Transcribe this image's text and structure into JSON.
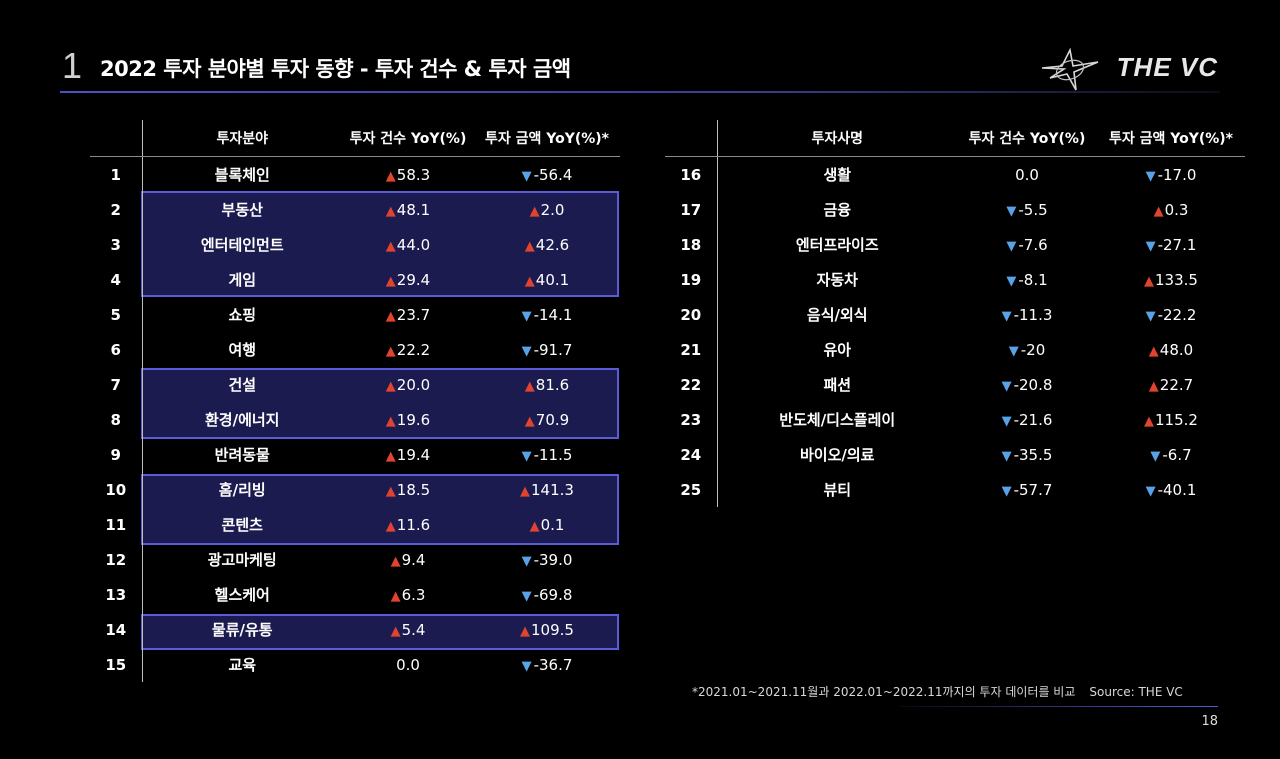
{
  "header": {
    "section_number": "1",
    "title": "2022 투자 분야별 투자 동향 - 투자 건수 & 투자 금액",
    "logo_text": "THE VC"
  },
  "left_table": {
    "headers": [
      "",
      "투자분야",
      "투자 건수 YoY(%)",
      "투자 금액 YoY(%)*"
    ],
    "rows": [
      {
        "rank": "1",
        "category": "블록체인",
        "count": "58.3",
        "count_dir": "up",
        "amount": "-56.4",
        "amount_dir": "down"
      },
      {
        "rank": "2",
        "category": "부동산",
        "count": "48.1",
        "count_dir": "up",
        "amount": "2.0",
        "amount_dir": "up"
      },
      {
        "rank": "3",
        "category": "엔터테인먼트",
        "count": "44.0",
        "count_dir": "up",
        "amount": "42.6",
        "amount_dir": "up"
      },
      {
        "rank": "4",
        "category": "게임",
        "count": "29.4",
        "count_dir": "up",
        "amount": "40.1",
        "amount_dir": "up"
      },
      {
        "rank": "5",
        "category": "쇼핑",
        "count": "23.7",
        "count_dir": "up",
        "amount": "-14.1",
        "amount_dir": "down"
      },
      {
        "rank": "6",
        "category": "여행",
        "count": "22.2",
        "count_dir": "up",
        "amount": "-91.7",
        "amount_dir": "down"
      },
      {
        "rank": "7",
        "category": "건설",
        "count": "20.0",
        "count_dir": "up",
        "amount": "81.6",
        "amount_dir": "up"
      },
      {
        "rank": "8",
        "category": "환경/에너지",
        "count": "19.6",
        "count_dir": "up",
        "amount": "70.9",
        "amount_dir": "up"
      },
      {
        "rank": "9",
        "category": "반려동물",
        "count": "19.4",
        "count_dir": "up",
        "amount": "-11.5",
        "amount_dir": "down"
      },
      {
        "rank": "10",
        "category": "홈/리빙",
        "count": "18.5",
        "count_dir": "up",
        "amount": "141.3",
        "amount_dir": "up"
      },
      {
        "rank": "11",
        "category": "콘텐츠",
        "count": "11.6",
        "count_dir": "up",
        "amount": "0.1",
        "amount_dir": "up"
      },
      {
        "rank": "12",
        "category": "광고마케팅",
        "count": "9.4",
        "count_dir": "up",
        "amount": "-39.0",
        "amount_dir": "down"
      },
      {
        "rank": "13",
        "category": "헬스케어",
        "count": "6.3",
        "count_dir": "up",
        "amount": "-69.8",
        "amount_dir": "down"
      },
      {
        "rank": "14",
        "category": "물류/유통",
        "count": "5.4",
        "count_dir": "up",
        "amount": "109.5",
        "amount_dir": "up"
      },
      {
        "rank": "15",
        "category": "교육",
        "count": "0.0",
        "count_dir": "none",
        "amount": "-36.7",
        "amount_dir": "down"
      }
    ]
  },
  "right_table": {
    "headers": [
      "",
      "투자사명",
      "투자 건수 YoY(%)",
      "투자 금액 YoY(%)*"
    ],
    "rows": [
      {
        "rank": "16",
        "category": "생활",
        "count": "0.0",
        "count_dir": "none",
        "amount": "-17.0",
        "amount_dir": "down"
      },
      {
        "rank": "17",
        "category": "금융",
        "count": "-5.5",
        "count_dir": "down",
        "amount": "0.3",
        "amount_dir": "up"
      },
      {
        "rank": "18",
        "category": "엔터프라이즈",
        "count": "-7.6",
        "count_dir": "down",
        "amount": "-27.1",
        "amount_dir": "down"
      },
      {
        "rank": "19",
        "category": "자동차",
        "count": "-8.1",
        "count_dir": "down",
        "amount": "133.5",
        "amount_dir": "up"
      },
      {
        "rank": "20",
        "category": "음식/외식",
        "count": "-11.3",
        "count_dir": "down",
        "amount": "-22.2",
        "amount_dir": "down"
      },
      {
        "rank": "21",
        "category": "유아",
        "count": "-20",
        "count_dir": "down",
        "amount": "48.0",
        "amount_dir": "up"
      },
      {
        "rank": "22",
        "category": "패션",
        "count": "-20.8",
        "count_dir": "down",
        "amount": "22.7",
        "amount_dir": "up"
      },
      {
        "rank": "23",
        "category": "반도체/디스플레이",
        "count": "-21.6",
        "count_dir": "down",
        "amount": "115.2",
        "amount_dir": "up"
      },
      {
        "rank": "24",
        "category": "바이오/의료",
        "count": "-35.5",
        "count_dir": "down",
        "amount": "-6.7",
        "amount_dir": "down"
      },
      {
        "rank": "25",
        "category": "뷰티",
        "count": "-57.7",
        "count_dir": "down",
        "amount": "-40.1",
        "amount_dir": "down"
      }
    ]
  },
  "highlighted_ranks": [
    "2",
    "3",
    "4",
    "7",
    "8",
    "10",
    "11",
    "14"
  ],
  "footer": {
    "note": "*2021.01~2021.11월과 2022.01~2022.11까지의 투자 데이터를 비교",
    "source": "Source: THE VC",
    "page_number": "18"
  },
  "colors": {
    "up_arrow": "#e0442f",
    "down_arrow": "#5aa2e6",
    "highlight_fill": "#1c1b4f",
    "highlight_border": "#5b5bd8"
  }
}
